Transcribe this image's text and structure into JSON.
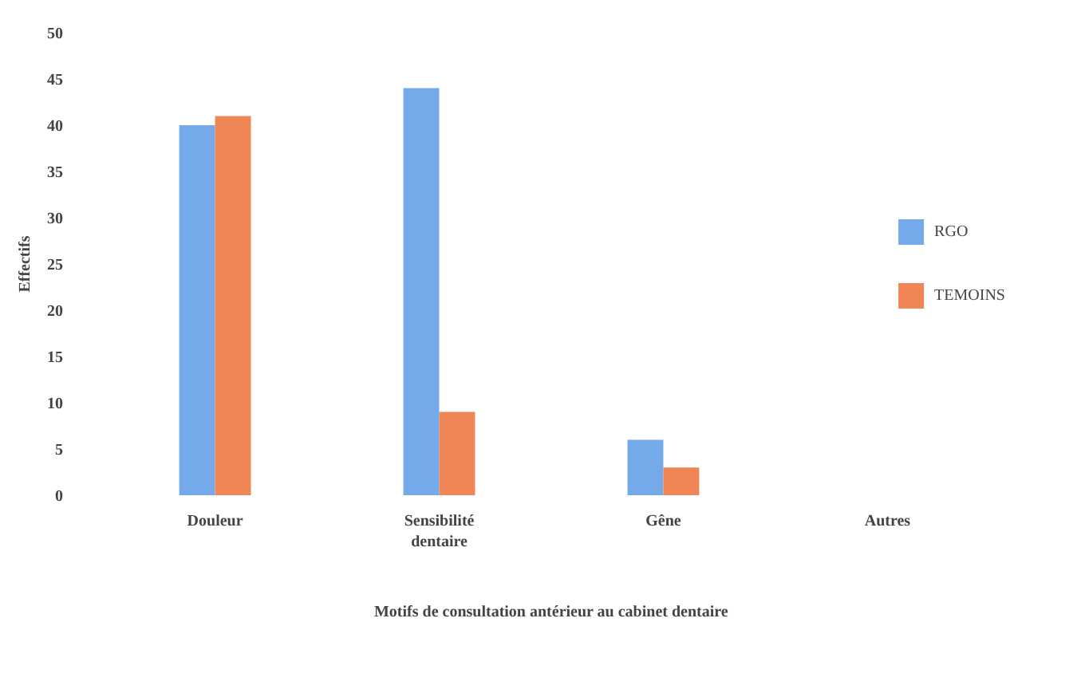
{
  "chart_data": {
    "type": "bar",
    "xlabel": "Motifs de consultation antérieur au cabinet dentaire",
    "ylabel": "Effectifs",
    "categories": [
      "Douleur",
      "Sensibilité\ndentaire",
      "Gêne",
      "Autres"
    ],
    "series": [
      {
        "name": "RGO",
        "color": "#74aaea",
        "values": [
          40,
          44,
          6,
          0
        ]
      },
      {
        "name": "TEMOINS",
        "color": "#f08656",
        "values": [
          41,
          9,
          3,
          0
        ]
      }
    ],
    "ylim": [
      0,
      50
    ],
    "yticks": [
      0,
      5,
      10,
      15,
      20,
      25,
      30,
      35,
      40,
      45,
      50
    ],
    "grid": false,
    "legend": "right"
  }
}
